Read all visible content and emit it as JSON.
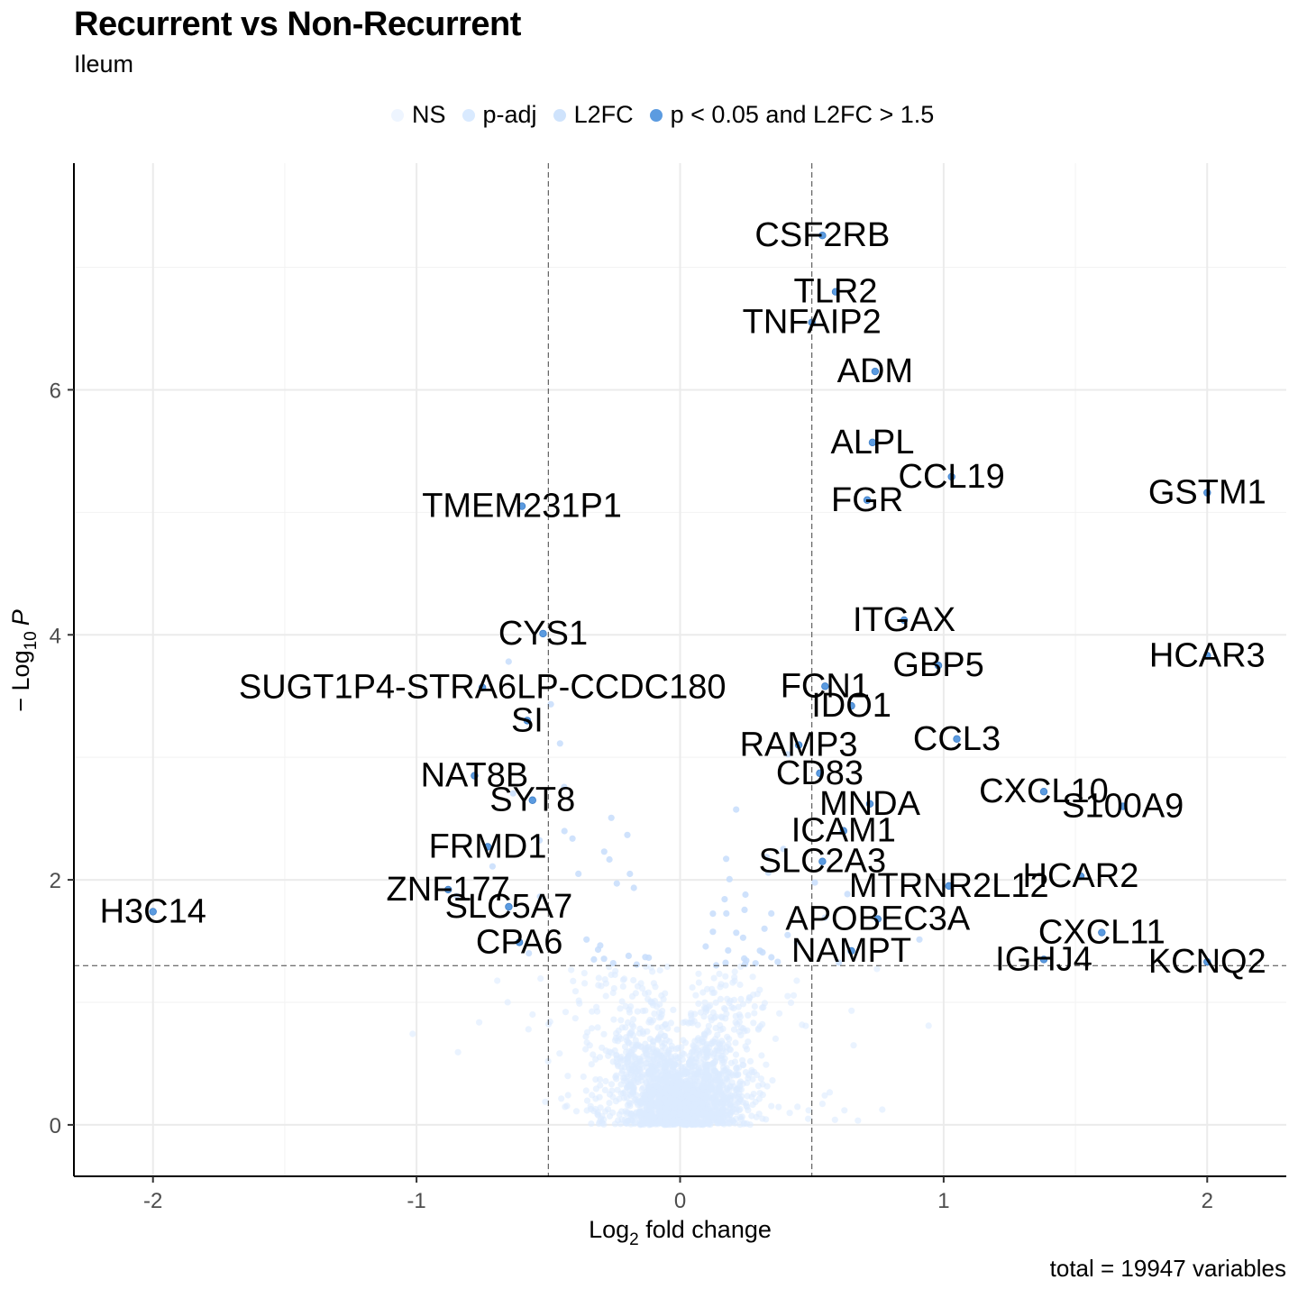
{
  "chart_data": {
    "type": "scatter",
    "title": "Recurrent vs Non-Recurrent",
    "subtitle": "Ileum",
    "caption": "total = 19947 variables",
    "xlabel_main": "Log",
    "xlabel_sub": "2",
    "xlabel_rest": " fold change",
    "ylabel_main": "− Log",
    "ylabel_sub": "10",
    "ylabel_italic": "P",
    "xlim": [
      -2.3,
      2.3
    ],
    "ylim": [
      -0.42,
      7.85
    ],
    "x_ticks": [
      -2,
      -1,
      0,
      1,
      2
    ],
    "x_tick_labels": [
      "-2",
      "-1",
      "0",
      "1",
      "2"
    ],
    "y_ticks": [
      0,
      2,
      4,
      6
    ],
    "y_tick_labels": [
      "0",
      "2",
      "4",
      "6"
    ],
    "grid": true,
    "legend_position": "top",
    "thresholds": {
      "log2fc": [
        -0.5,
        0.5
      ],
      "neg_log10_p": 1.3
    },
    "legend": [
      {
        "label": "NS",
        "color": "#eef5ff"
      },
      {
        "label": "p-adj",
        "color": "#d9eaff"
      },
      {
        "label": "L2FC",
        "color": "#cfe3fc"
      },
      {
        "label": "p < 0.05 and L2FC > 1.5",
        "color": "#5b9be0"
      }
    ],
    "colors": {
      "ns": "#dcebff",
      "padj": "#c7ddfb",
      "sig": "#5b9be0",
      "sig_edge": "#3f7fc8"
    },
    "labeled_genes": [
      {
        "gene": "CSF2RB",
        "x": 0.54,
        "y": 7.26
      },
      {
        "gene": "TLR2",
        "x": 0.59,
        "y": 6.8
      },
      {
        "gene": "TNFAIP2",
        "x": 0.5,
        "y": 6.55
      },
      {
        "gene": "ADM",
        "x": 0.74,
        "y": 6.15
      },
      {
        "gene": "ALPL",
        "x": 0.73,
        "y": 5.57
      },
      {
        "gene": "CCL19",
        "x": 1.03,
        "y": 5.29
      },
      {
        "gene": "GSTM1",
        "x": 2.0,
        "y": 5.16
      },
      {
        "gene": "TMEM231P1",
        "x": -0.6,
        "y": 5.05
      },
      {
        "gene": "FGR",
        "x": 0.71,
        "y": 5.1
      },
      {
        "gene": "ITGAX",
        "x": 0.85,
        "y": 4.12
      },
      {
        "gene": "HCAR3",
        "x": 2.0,
        "y": 3.83
      },
      {
        "gene": "CYS1",
        "x": -0.52,
        "y": 4.01
      },
      {
        "gene": "GBP5",
        "x": 0.98,
        "y": 3.75
      },
      {
        "gene": "SUGT1P4-STRA6LP-CCDC180",
        "x": -0.75,
        "y": 3.57
      },
      {
        "gene": "FCN1",
        "x": 0.55,
        "y": 3.58
      },
      {
        "gene": "IDO1",
        "x": 0.65,
        "y": 3.42
      },
      {
        "gene": "SI",
        "x": -0.58,
        "y": 3.3
      },
      {
        "gene": "RAMP3",
        "x": 0.45,
        "y": 3.1
      },
      {
        "gene": "CCL3",
        "x": 1.05,
        "y": 3.15
      },
      {
        "gene": "NAT8B",
        "x": -0.78,
        "y": 2.85
      },
      {
        "gene": "CD83",
        "x": 0.53,
        "y": 2.87
      },
      {
        "gene": "CXCL10",
        "x": 1.38,
        "y": 2.72
      },
      {
        "gene": "SYT8",
        "x": -0.56,
        "y": 2.65
      },
      {
        "gene": "MNDA",
        "x": 0.72,
        "y": 2.62
      },
      {
        "gene": "S100A9",
        "x": 1.68,
        "y": 2.6
      },
      {
        "gene": "FRMD1",
        "x": -0.73,
        "y": 2.27
      },
      {
        "gene": "ICAM1",
        "x": 0.62,
        "y": 2.4
      },
      {
        "gene": "HCAR2",
        "x": 1.52,
        "y": 2.03
      },
      {
        "gene": "SLC2A3",
        "x": 0.54,
        "y": 2.15
      },
      {
        "gene": "ZNF177",
        "x": -0.88,
        "y": 1.92
      },
      {
        "gene": "MTRNR2L12",
        "x": 1.02,
        "y": 1.95
      },
      {
        "gene": "H3C14",
        "x": -2.0,
        "y": 1.74
      },
      {
        "gene": "SLC5A7",
        "x": -0.65,
        "y": 1.78
      },
      {
        "gene": "APOBEC3A",
        "x": 0.75,
        "y": 1.68
      },
      {
        "gene": "CXCL11",
        "x": 1.6,
        "y": 1.57
      },
      {
        "gene": "CPA6",
        "x": -0.61,
        "y": 1.49
      },
      {
        "gene": "NAMPT",
        "x": 0.65,
        "y": 1.42
      },
      {
        "gene": "IGHJ4",
        "x": 1.38,
        "y": 1.35
      },
      {
        "gene": "KCNQ2",
        "x": 2.0,
        "y": 1.33
      }
    ]
  }
}
